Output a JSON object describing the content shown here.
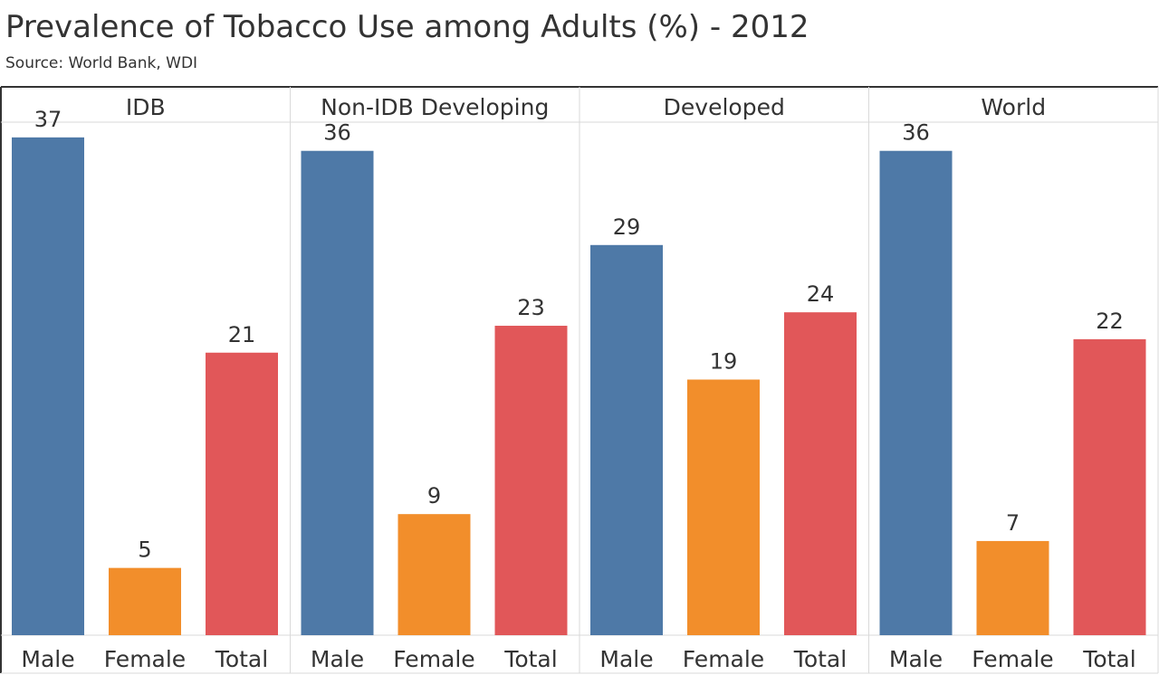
{
  "title": "Prevalence of Tobacco Use among Adults (%) - 2012",
  "subtitle": "Source: World Bank, WDI",
  "colors": {
    "Male": "#4e79a7",
    "Female": "#f28e2b",
    "Total": "#e15759"
  },
  "chart_data": {
    "type": "bar",
    "title": "Prevalence of Tobacco Use among Adults (%) - 2012",
    "subtitle": "Source: World Bank, WDI",
    "panels": [
      "IDB",
      "Non-IDB Developing",
      "Developed",
      "World"
    ],
    "categories": [
      "Male",
      "Female",
      "Total"
    ],
    "values": [
      [
        37,
        5,
        21
      ],
      [
        36,
        9,
        23
      ],
      [
        29,
        19,
        24
      ],
      [
        36,
        7,
        22
      ]
    ],
    "ylim": [
      0,
      38
    ],
    "grid": false,
    "legend": "none"
  }
}
